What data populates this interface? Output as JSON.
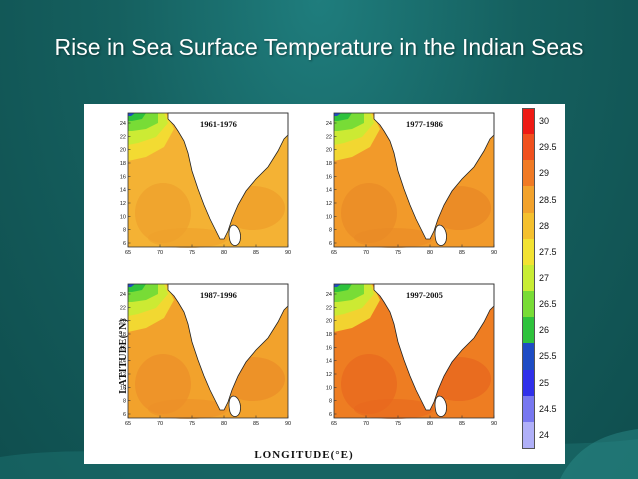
{
  "slide": {
    "title": "Rise in Sea Surface Temperature in the Indian Seas"
  },
  "figure": {
    "y_axis_label": "LATITUDE(°N)",
    "x_axis_label": "LONGITUDE(°E)",
    "lat_ticks": [
      "24",
      "22",
      "20",
      "18",
      "16",
      "14",
      "12",
      "10",
      "8",
      "6"
    ],
    "lon_ticks": [
      "65",
      "70",
      "75",
      "80",
      "85",
      "90"
    ],
    "panels": [
      {
        "period": "1961-1976",
        "sea_color": "#f4b234",
        "warm_color": "#eea02c"
      },
      {
        "period": "1977-1986",
        "sea_color": "#f29a2a",
        "warm_color": "#ea8a26"
      },
      {
        "period": "1987-1996",
        "sea_color": "#f2a22c",
        "warm_color": "#ec8f28"
      },
      {
        "period": "1997-2005",
        "sea_color": "#ee7d22",
        "warm_color": "#e8681e"
      }
    ],
    "colorbar": {
      "labels": [
        "30",
        "29.5",
        "29",
        "28.5",
        "28",
        "27.5",
        "27",
        "26.5",
        "26",
        "25.5",
        "25",
        "24.5",
        "24"
      ],
      "colors": [
        "#ee1a14",
        "#f0501e",
        "#f07a24",
        "#f2a22c",
        "#f4c02e",
        "#f2e232",
        "#c8ec34",
        "#78dc36",
        "#2ec23c",
        "#1e4cc4",
        "#3030ea",
        "#7878f0",
        "#b0b0f8"
      ]
    }
  }
}
